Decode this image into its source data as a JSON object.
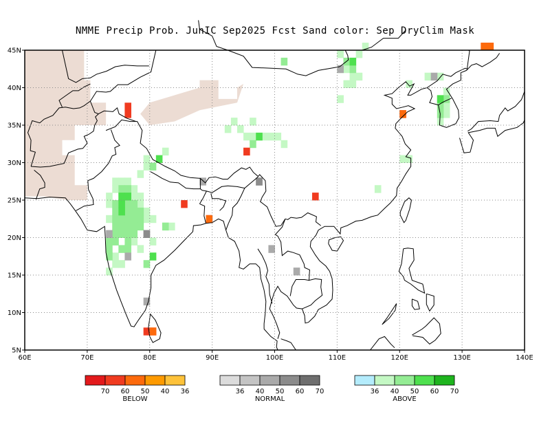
{
  "title": "NMME Precip Prob. JunIC  Sep2025 Fcst  Sand color: Sep DryClim Mask",
  "colors": {
    "sand": "#ecdcd3",
    "below": [
      "#e31a1c",
      "#f03b20",
      "#fd6a0c",
      "#fe9a00",
      "#fec23a"
    ],
    "normal": [
      "#dcdcdc",
      "#c4c4c4",
      "#aaaaaa",
      "#8c8c8c",
      "#6e6e6e"
    ],
    "above": [
      "#b4ecfc",
      "#c4f8c4",
      "#94ec94",
      "#4ee04e",
      "#1eb41e"
    ]
  },
  "map": {
    "lon_range": [
      60,
      140
    ],
    "lat_range": [
      5,
      45
    ],
    "x_ticks": [
      "60E",
      "70E",
      "80E",
      "90E",
      "100E",
      "110E",
      "120E",
      "130E",
      "140E"
    ],
    "y_ticks": [
      "5N",
      "10N",
      "15N",
      "20N",
      "25N",
      "30N",
      "35N",
      "40N",
      "45N"
    ]
  },
  "legend": {
    "below": {
      "title": "BELOW",
      "ticks": [
        "70",
        "60",
        "50",
        "40",
        "36"
      ]
    },
    "normal": {
      "title": "NORMAL",
      "ticks": [
        "36",
        "40",
        "50",
        "60",
        "70"
      ]
    },
    "above": {
      "title": "ABOVE",
      "ticks": [
        "36",
        "40",
        "50",
        "60",
        "70"
      ]
    }
  }
}
